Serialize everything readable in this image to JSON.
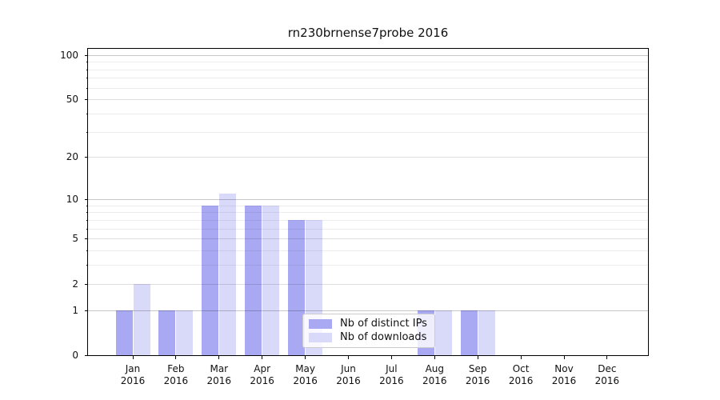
{
  "figure": {
    "title": "rn230brnense7probe 2016",
    "background": "#ffffff"
  },
  "legend": {
    "items": [
      {
        "label": "Nb of distinct IPs",
        "key": "distinct-ips"
      },
      {
        "label": "Nb of downloads",
        "key": "downloads"
      }
    ]
  },
  "chart_data": {
    "type": "bar",
    "title": "rn230brnense7probe 2016",
    "categories": [
      "Jan 2016",
      "Feb 2016",
      "Mar 2016",
      "Apr 2016",
      "May 2016",
      "Jun 2016",
      "Jul 2016",
      "Aug 2016",
      "Sep 2016",
      "Oct 2016",
      "Nov 2016",
      "Dec 2016"
    ],
    "series": [
      {
        "name": "Nb of distinct IPs",
        "key": "distinct-ips",
        "color": "#a9a9f3",
        "values": [
          1,
          1,
          9,
          9,
          7,
          0,
          0,
          1,
          1,
          0,
          0,
          0
        ]
      },
      {
        "name": "Nb of downloads",
        "key": "downloads",
        "color": "#d9d9fa",
        "values": [
          2,
          1,
          11,
          9,
          7,
          0,
          0,
          1,
          1,
          0,
          0,
          0
        ]
      }
    ],
    "xlabel": "",
    "ylabel": "",
    "yscale": "log1p",
    "ylim": [
      0,
      110
    ],
    "y_major_ticks": [
      0,
      1,
      2,
      5,
      10,
      20,
      50,
      100
    ],
    "y_minor_ticks": [
      3,
      4,
      6,
      7,
      8,
      9,
      30,
      40,
      60,
      70,
      80,
      90
    ],
    "grid": "horizontal-only",
    "legend_position": "lower-center-right"
  }
}
